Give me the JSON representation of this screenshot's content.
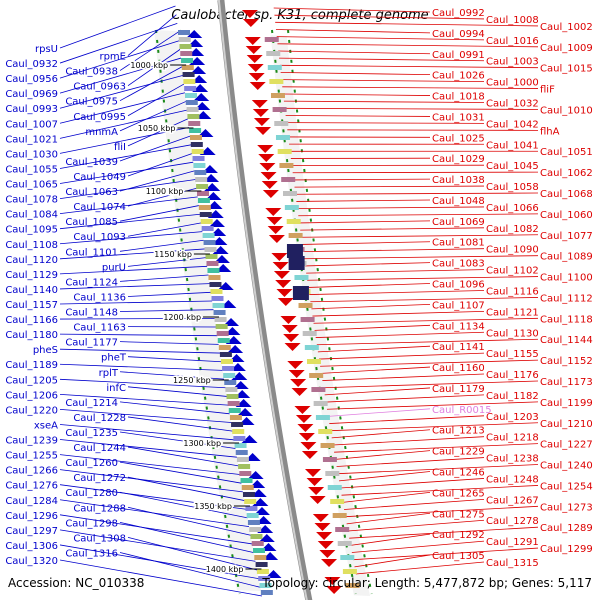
{
  "title": "Caulobacter sp. K31, complete genome",
  "footer": {
    "accession": "Accession: NC_010338",
    "topology": "Topology: circular; Length: 5,477,872 bp; Genes: 5,117"
  },
  "colors": {
    "forward": "#0000cc",
    "reverse": "#dd0000",
    "rna": "#e080e0",
    "backbone": "#8a8a8a",
    "tick": "#1a8a1a"
  },
  "ruler": [
    "1000 kbp",
    "1050 kbp",
    "1100 kbp",
    "1150 kbp",
    "1200 kbp",
    "1250 kbp",
    "1300 kbp",
    "1350 kbp",
    "1400 kbp"
  ],
  "forward_labels": [
    "rpsU",
    "rpmE",
    "Caul_0932",
    "Caul_0938",
    "Caul_0956",
    "Caul_0963",
    "Caul_0969",
    "Caul_0975",
    "Caul_0993",
    "Caul_0995",
    "Caul_1007",
    "mnmA",
    "Caul_1021",
    "fliI",
    "Caul_1030",
    "Caul_1039",
    "Caul_1055",
    "Caul_1049",
    "Caul_1065",
    "Caul_1063",
    "Caul_1078",
    "Caul_1074",
    "Caul_1084",
    "Caul_1085",
    "Caul_1095",
    "Caul_1093",
    "Caul_1108",
    "Caul_1101",
    "Caul_1120",
    "purU",
    "Caul_1129",
    "Caul_1124",
    "Caul_1140",
    "Caul_1136",
    "Caul_1157",
    "Caul_1148",
    "Caul_1166",
    "Caul_1163",
    "Caul_1180",
    "Caul_1177",
    "pheS",
    "pheT",
    "Caul_1189",
    "rplT",
    "Caul_1205",
    "infC",
    "Caul_1206",
    "Caul_1214",
    "Caul_1220",
    "Caul_1228",
    "xseA",
    "Caul_1235",
    "Caul_1239",
    "Caul_1244",
    "Caul_1255",
    "Caul_1260",
    "Caul_1266",
    "Caul_1272",
    "Caul_1276",
    "Caul_1280",
    "Caul_1284",
    "Caul_1288",
    "Caul_1296",
    "Caul_1298",
    "Caul_1297",
    "Caul_1308",
    "Caul_1306",
    "Caul_1316",
    "Caul_1320"
  ],
  "reverse_labels": [
    "Caul_0992",
    "Caul_1008",
    "Caul_1002",
    "Caul_0994",
    "Caul_1016",
    "Caul_1009",
    "Caul_0991",
    "Caul_1003",
    "Caul_1015",
    "Caul_1026",
    "Caul_1000",
    "fliF",
    "Caul_1018",
    "Caul_1032",
    "Caul_1010",
    "Caul_1031",
    "Caul_1042",
    "flhA",
    "Caul_1025",
    "Caul_1041",
    "Caul_1051",
    "Caul_1029",
    "Caul_1045",
    "Caul_1062",
    "Caul_1038",
    "Caul_1058",
    "Caul_1068",
    "Caul_1048",
    "Caul_1066",
    "Caul_1060",
    "Caul_1069",
    "Caul_1082",
    "Caul_1077",
    "Caul_1081",
    "Caul_1090",
    "Caul_1089",
    "Caul_1083",
    "Caul_1102",
    "Caul_1100",
    "Caul_1096",
    "Caul_1116",
    "Caul_1112",
    "Caul_1107",
    "Caul_1121",
    "Caul_1118",
    "Caul_1134",
    "Caul_1130",
    "Caul_1144",
    "Caul_1141",
    "Caul_1155",
    "Caul_1152",
    "Caul_1160",
    "Caul_1176",
    "Caul_1173",
    "Caul_1179",
    "Caul_1182",
    "Caul_1199",
    "Caul_R0015",
    "Caul_1203",
    "Caul_1210",
    "Caul_1213",
    "Caul_1218",
    "Caul_1227",
    "Caul_1229",
    "Caul_1238",
    "Caul_1240",
    "Caul_1246",
    "Caul_1248",
    "Caul_1254",
    "Caul_1265",
    "Caul_1267",
    "Caul_1273",
    "Caul_1275",
    "Caul_1278",
    "Caul_1289",
    "Caul_1292",
    "Caul_1291",
    "Caul_1299",
    "Caul_1305",
    "Caul_1315"
  ]
}
